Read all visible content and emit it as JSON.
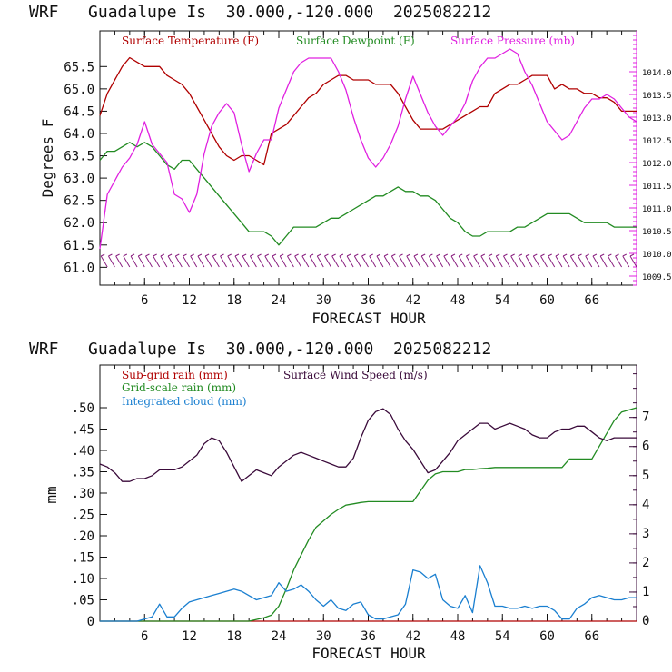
{
  "colors": {
    "temperature": "#b00000",
    "dewpoint": "#228b22",
    "pressure": "#e020e0",
    "wind_speed": "#3a0a3a",
    "subgrid_rain": "#b00000",
    "gridscale_rain": "#228b22",
    "cloud": "#1a7fd0",
    "barbs": "#8a2080"
  },
  "chart_data": [
    {
      "type": "line",
      "title": "WRF   Guadalupe Is  30.000,-120.000  2025082212",
      "xlabel": "FORECAST HOUR",
      "ylabel": "Degrees F",
      "xlim": [
        0,
        72
      ],
      "ylim": [
        60.6,
        66.3
      ],
      "y2lim": [
        1009.3,
        1014.9
      ],
      "x_ticks": [
        "6",
        "12",
        "18",
        "24",
        "30",
        "36",
        "42",
        "48",
        "54",
        "60",
        "66"
      ],
      "y_ticks": [
        "61.0",
        "61.5",
        "62.0",
        "62.5",
        "63.0",
        "63.5",
        "64.0",
        "64.5",
        "65.0",
        "65.5"
      ],
      "y2_ticks": [
        "1009.5",
        "1010.0",
        "1010.5",
        "1011.0",
        "1011.5",
        "1012.0",
        "1012.5",
        "1013.0",
        "1013.5",
        "1014.0"
      ],
      "legend": [
        "Surface Temperature (F)",
        "Surface Dewpoint (F)",
        "Surface Pressure (mb)"
      ],
      "series": [
        {
          "name": "Surface Temperature (F)",
          "axis": "left",
          "x": [
            0,
            1,
            2,
            3,
            4,
            5,
            6,
            7,
            8,
            9,
            10,
            11,
            12,
            13,
            14,
            15,
            16,
            17,
            18,
            19,
            20,
            21,
            22,
            23,
            24,
            25,
            26,
            27,
            28,
            29,
            30,
            31,
            32,
            33,
            34,
            35,
            36,
            37,
            38,
            39,
            40,
            41,
            42,
            43,
            44,
            45,
            46,
            47,
            48,
            49,
            50,
            51,
            52,
            53,
            54,
            55,
            56,
            57,
            58,
            59,
            60,
            61,
            62,
            63,
            64,
            65,
            66,
            67,
            68,
            69,
            70,
            71,
            72
          ],
          "y": [
            64.4,
            64.9,
            65.2,
            65.5,
            65.7,
            65.6,
            65.5,
            65.5,
            65.5,
            65.3,
            65.2,
            65.1,
            64.9,
            64.6,
            64.3,
            64.0,
            63.7,
            63.5,
            63.4,
            63.5,
            63.5,
            63.4,
            63.3,
            64.0,
            64.1,
            64.2,
            64.4,
            64.6,
            64.8,
            64.9,
            65.1,
            65.2,
            65.3,
            65.3,
            65.2,
            65.2,
            65.2,
            65.1,
            65.1,
            65.1,
            64.9,
            64.6,
            64.3,
            64.1,
            64.1,
            64.1,
            64.1,
            64.2,
            64.3,
            64.4,
            64.5,
            64.6,
            64.6,
            64.9,
            65.0,
            65.1,
            65.1,
            65.2,
            65.3,
            65.3,
            65.3,
            65.0,
            65.1,
            65.0,
            65.0,
            64.9,
            64.9,
            64.8,
            64.8,
            64.7,
            64.5,
            64.5,
            64.5
          ]
        },
        {
          "name": "Surface Dewpoint (F)",
          "axis": "left",
          "x": [
            0,
            1,
            2,
            3,
            4,
            5,
            6,
            7,
            8,
            9,
            10,
            11,
            12,
            13,
            14,
            15,
            16,
            17,
            18,
            19,
            20,
            21,
            22,
            23,
            24,
            25,
            26,
            27,
            28,
            29,
            30,
            31,
            32,
            33,
            34,
            35,
            36,
            37,
            38,
            39,
            40,
            41,
            42,
            43,
            44,
            45,
            46,
            47,
            48,
            49,
            50,
            51,
            52,
            53,
            54,
            55,
            56,
            57,
            58,
            59,
            60,
            61,
            62,
            63,
            64,
            65,
            66,
            67,
            68,
            69,
            70,
            71,
            72
          ],
          "y": [
            63.4,
            63.6,
            63.6,
            63.7,
            63.8,
            63.7,
            63.8,
            63.7,
            63.5,
            63.3,
            63.2,
            63.4,
            63.4,
            63.2,
            63.0,
            62.8,
            62.6,
            62.4,
            62.2,
            62.0,
            61.8,
            61.8,
            61.8,
            61.7,
            61.5,
            61.7,
            61.9,
            61.9,
            61.9,
            61.9,
            62.0,
            62.1,
            62.1,
            62.2,
            62.3,
            62.4,
            62.5,
            62.6,
            62.6,
            62.7,
            62.8,
            62.7,
            62.7,
            62.6,
            62.6,
            62.5,
            62.3,
            62.1,
            62.0,
            61.8,
            61.7,
            61.7,
            61.8,
            61.8,
            61.8,
            61.8,
            61.9,
            61.9,
            62.0,
            62.1,
            62.2,
            62.2,
            62.2,
            62.2,
            62.1,
            62.0,
            62.0,
            62.0,
            62.0,
            61.9,
            61.9,
            61.9,
            61.9
          ]
        },
        {
          "name": "Surface Pressure (mb)",
          "axis": "right",
          "x": [
            0,
            1,
            2,
            3,
            4,
            5,
            6,
            7,
            8,
            9,
            10,
            11,
            12,
            13,
            14,
            15,
            16,
            17,
            18,
            19,
            20,
            21,
            22,
            23,
            24,
            25,
            26,
            27,
            28,
            29,
            30,
            31,
            32,
            33,
            34,
            35,
            36,
            37,
            38,
            39,
            40,
            41,
            42,
            43,
            44,
            45,
            46,
            47,
            48,
            49,
            50,
            51,
            52,
            53,
            54,
            55,
            56,
            57,
            58,
            59,
            60,
            61,
            62,
            63,
            64,
            65,
            66,
            67,
            68,
            69,
            70,
            71,
            72
          ],
          "y": [
            1010.1,
            1011.3,
            1011.6,
            1011.9,
            1012.1,
            1012.4,
            1012.9,
            1012.4,
            1012.2,
            1012.0,
            1011.3,
            1011.2,
            1010.9,
            1011.3,
            1012.2,
            1012.8,
            1013.1,
            1013.3,
            1013.1,
            1012.4,
            1011.8,
            1012.2,
            1012.5,
            1012.5,
            1013.2,
            1013.6,
            1014.0,
            1014.2,
            1014.3,
            1014.3,
            1014.3,
            1014.3,
            1014.0,
            1013.6,
            1013.0,
            1012.5,
            1012.1,
            1011.9,
            1012.1,
            1012.4,
            1012.8,
            1013.4,
            1013.9,
            1013.5,
            1013.1,
            1012.8,
            1012.6,
            1012.8,
            1013.0,
            1013.3,
            1013.8,
            1014.1,
            1014.3,
            1014.3,
            1014.4,
            1014.5,
            1014.4,
            1014.0,
            1013.7,
            1013.3,
            1012.9,
            1012.7,
            1012.5,
            1012.6,
            1012.9,
            1013.2,
            1013.4,
            1013.4,
            1013.5,
            1013.4,
            1013.2,
            1013.0,
            1012.9
          ]
        }
      ],
      "wind_barb_hours": [
        1,
        2,
        3,
        4,
        5,
        6,
        7,
        8,
        9,
        10,
        11,
        12,
        13,
        14,
        15,
        16,
        17,
        18,
        19,
        20,
        21,
        22,
        23,
        24,
        25,
        26,
        27,
        28,
        29,
        30,
        31,
        32,
        33,
        34,
        35,
        36,
        37,
        38,
        39,
        40,
        41,
        42,
        43,
        44,
        45,
        46,
        47,
        48,
        49,
        50,
        51,
        52,
        53,
        54,
        55,
        56,
        57,
        58,
        59,
        60,
        61,
        62,
        63,
        64,
        65,
        66,
        67,
        68,
        69,
        70,
        71,
        72
      ]
    },
    {
      "type": "line",
      "title": "WRF   Guadalupe Is  30.000,-120.000  2025082212",
      "xlabel": "FORECAST HOUR",
      "ylabel": "mm",
      "xlim": [
        0,
        72
      ],
      "ylim": [
        0,
        0.6
      ],
      "y2lim": [
        0,
        8.8
      ],
      "x_ticks": [
        "6",
        "12",
        "18",
        "24",
        "30",
        "36",
        "42",
        "48",
        "54",
        "60",
        "66"
      ],
      "y_ticks": [
        "0",
        ".05",
        ".10",
        ".15",
        ".20",
        ".25",
        ".30",
        ".35",
        ".40",
        ".45",
        ".50"
      ],
      "y2_ticks": [
        "0",
        "1",
        "2",
        "3",
        "4",
        "5",
        "6",
        "7"
      ],
      "legend": [
        "Sub-grid rain (mm)",
        "Surface Wind Speed (m/s)",
        "Grid-scale rain (mm)",
        "Integrated cloud (mm)"
      ],
      "series": [
        {
          "name": "Sub-grid rain (mm)",
          "axis": "left",
          "x": [
            0,
            72
          ],
          "y": [
            0,
            0
          ]
        },
        {
          "name": "Surface Wind Speed (m/s)",
          "axis": "right",
          "x": [
            0,
            1,
            2,
            3,
            4,
            5,
            6,
            7,
            8,
            9,
            10,
            11,
            12,
            13,
            14,
            15,
            16,
            17,
            18,
            19,
            20,
            21,
            22,
            23,
            24,
            25,
            26,
            27,
            28,
            29,
            30,
            31,
            32,
            33,
            34,
            35,
            36,
            37,
            38,
            39,
            40,
            41,
            42,
            43,
            44,
            45,
            46,
            47,
            48,
            49,
            50,
            51,
            52,
            53,
            54,
            55,
            56,
            57,
            58,
            59,
            60,
            61,
            62,
            63,
            64,
            65,
            66,
            67,
            68,
            69,
            70,
            71,
            72
          ],
          "y": [
            5.4,
            5.3,
            5.1,
            4.8,
            4.8,
            4.9,
            4.9,
            5.0,
            5.2,
            5.2,
            5.2,
            5.3,
            5.5,
            5.7,
            6.1,
            6.3,
            6.2,
            5.8,
            5.3,
            4.8,
            5.0,
            5.2,
            5.1,
            5.0,
            5.3,
            5.5,
            5.7,
            5.8,
            5.7,
            5.6,
            5.5,
            5.4,
            5.3,
            5.3,
            5.6,
            6.3,
            6.9,
            7.2,
            7.3,
            7.1,
            6.6,
            6.2,
            5.9,
            5.5,
            5.1,
            5.2,
            5.5,
            5.8,
            6.2,
            6.4,
            6.6,
            6.8,
            6.8,
            6.6,
            6.7,
            6.8,
            6.7,
            6.6,
            6.4,
            6.3,
            6.3,
            6.5,
            6.6,
            6.6,
            6.7,
            6.7,
            6.5,
            6.3,
            6.2,
            6.3,
            6.3,
            6.3,
            6.3
          ]
        },
        {
          "name": "Grid-scale rain (mm)",
          "axis": "left",
          "x": [
            0,
            19,
            20,
            21,
            22,
            23,
            24,
            25,
            26,
            27,
            28,
            29,
            30,
            31,
            32,
            33,
            34,
            35,
            36,
            37,
            38,
            39,
            40,
            41,
            42,
            43,
            44,
            45,
            46,
            47,
            48,
            49,
            50,
            51,
            52,
            53,
            54,
            55,
            56,
            57,
            58,
            59,
            60,
            61,
            62,
            63,
            64,
            65,
            66,
            67,
            68,
            69,
            70,
            71,
            72
          ],
          "y": [
            0,
            0,
            0,
            0.004,
            0.008,
            0.014,
            0.035,
            0.075,
            0.12,
            0.155,
            0.19,
            0.22,
            0.235,
            0.25,
            0.262,
            0.272,
            0.275,
            0.278,
            0.28,
            0.28,
            0.28,
            0.28,
            0.28,
            0.28,
            0.28,
            0.305,
            0.33,
            0.345,
            0.35,
            0.35,
            0.35,
            0.355,
            0.355,
            0.357,
            0.358,
            0.36,
            0.36,
            0.36,
            0.36,
            0.36,
            0.36,
            0.36,
            0.36,
            0.36,
            0.36,
            0.38,
            0.38,
            0.38,
            0.38,
            0.41,
            0.44,
            0.47,
            0.49,
            0.495,
            0.5
          ]
        },
        {
          "name": "Integrated cloud (mm)",
          "axis": "left",
          "x": [
            0,
            1,
            2,
            3,
            4,
            5,
            6,
            7,
            8,
            9,
            10,
            11,
            12,
            13,
            14,
            15,
            16,
            17,
            18,
            19,
            20,
            21,
            22,
            23,
            24,
            25,
            26,
            27,
            28,
            29,
            30,
            31,
            32,
            33,
            34,
            35,
            36,
            37,
            38,
            39,
            40,
            41,
            42,
            43,
            44,
            45,
            46,
            47,
            48,
            49,
            50,
            51,
            52,
            53,
            54,
            55,
            56,
            57,
            58,
            59,
            60,
            61,
            62,
            63,
            64,
            65,
            66,
            67,
            68,
            69,
            70,
            71,
            72
          ],
          "y": [
            0,
            0,
            0,
            0,
            0,
            0,
            0.005,
            0.01,
            0.04,
            0.01,
            0.01,
            0.03,
            0.045,
            0.05,
            0.055,
            0.06,
            0.065,
            0.07,
            0.075,
            0.07,
            0.06,
            0.05,
            0.055,
            0.06,
            0.09,
            0.07,
            0.075,
            0.085,
            0.07,
            0.05,
            0.035,
            0.05,
            0.03,
            0.025,
            0.04,
            0.045,
            0.015,
            0.005,
            0.005,
            0.01,
            0.015,
            0.04,
            0.12,
            0.115,
            0.1,
            0.11,
            0.05,
            0.035,
            0.03,
            0.06,
            0.02,
            0.13,
            0.09,
            0.035,
            0.035,
            0.03,
            0.03,
            0.035,
            0.03,
            0.035,
            0.035,
            0.025,
            0.005,
            0.005,
            0.03,
            0.04,
            0.055,
            0.06,
            0.055,
            0.05,
            0.05,
            0.055,
            0.055
          ]
        }
      ]
    }
  ]
}
